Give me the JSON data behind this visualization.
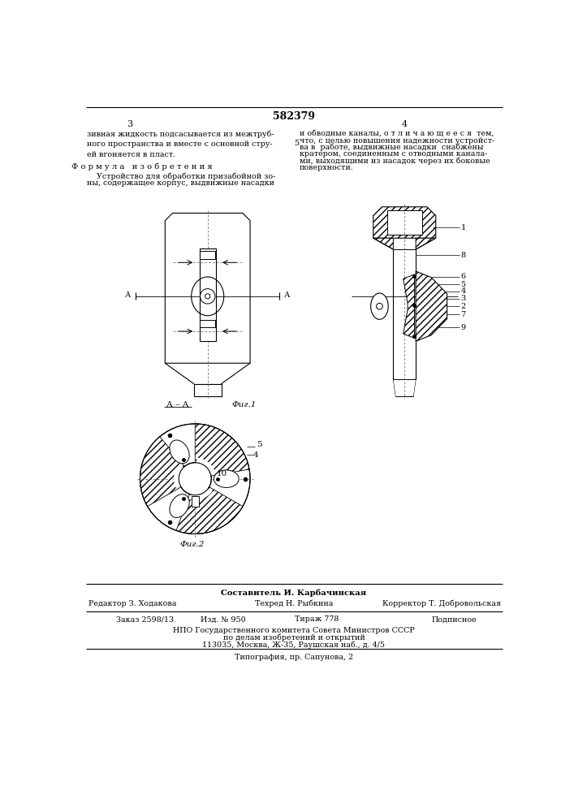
{
  "patent_number": "582379",
  "page_left": "3",
  "page_right": "4",
  "top_text_left": "зивная жидкость подсасывается из межтруб-\nного пространства и вместе с основной стру-\nей вгоняется в пласт.",
  "formula_title": "Ф о р м у л а   и з о б р е т е н и я",
  "formula_text_line1": "    Устройство для обработки призабойной зо-",
  "formula_text_line2": "ны, содержащее корпус, выдвижные насадки",
  "top_text_right_line1": "и обводные каналы, о т л и ч а ю щ е е с я  тем,",
  "top_text_right_line2": "что, с целью повышения надежности устройст-",
  "top_text_right_line3": "ва в  работе, выдвижные насадки  снабжены",
  "top_text_right_line4": "кратером, соединенным с отводными канала-",
  "top_text_right_line5": "ми, выходящими из насадок через их боковые",
  "top_text_right_line6": "поверхности.",
  "line5_label": "5",
  "fig1_label": "Фиг.1",
  "fig2_label": "Фиг.2",
  "aa_label": "А – А",
  "bottom_text1": "Составитель И. Карбачинская",
  "bottom_row1_l": "Редактор З. Ходакова",
  "bottom_row1_m": "Техред Н. Рыбкина",
  "bottom_row1_r": "Корректор Т. Добровольская",
  "bottom_row2_left": "Заказ 2598/13",
  "bottom_row2_mid1": "Изд. № 950",
  "bottom_row2_mid2": "Тираж 778",
  "bottom_row2_right": "Подписное",
  "bottom_npo_line1": "НПО Государственного комитета Совета Министров СССР",
  "bottom_npo_line2": "по делам изобретений и открытий",
  "bottom_npo_line3": "113035, Москва, Ж-35, Раушская наб., д. 4/5",
  "bottom_tipografia": "Типография, пр. Сапунова, 2",
  "bg_color": "#ffffff",
  "text_color": "#000000"
}
